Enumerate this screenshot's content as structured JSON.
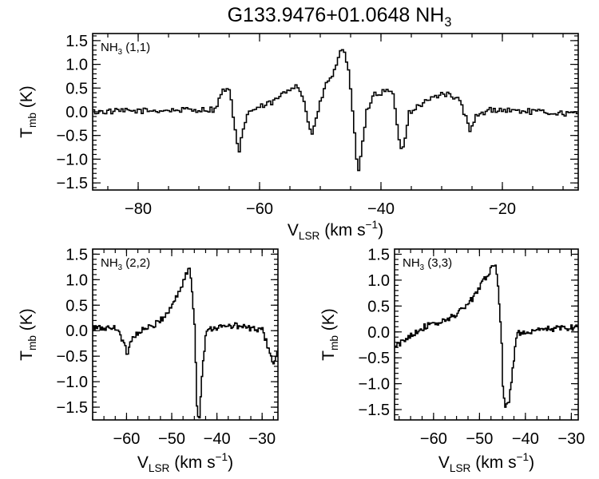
{
  "figure": {
    "title_main": "G133.9476+01.0648 NH",
    "title_sub": "3"
  },
  "chart_data": [
    {
      "type": "line",
      "step": true,
      "panel_label_main": "NH",
      "panel_label_sub": "3",
      "panel_label_suffix": " (1,1)",
      "xlabel_main": "V",
      "xlabel_sub": "LSR",
      "xlabel_unit": " (km s",
      "xlabel_sup": "−1",
      "xlabel_end": ")",
      "ylabel_main": "T",
      "ylabel_sub": "mb",
      "ylabel_unit": " (K)",
      "xlim": [
        -87.5,
        -7.5
      ],
      "ylim": [
        -1.65,
        1.65
      ],
      "xticks": [
        -80,
        -60,
        -40,
        -20
      ],
      "xtick_labels": [
        "−80",
        "−60",
        "−40",
        "−20"
      ],
      "yticks": [
        1.5,
        1.0,
        0.5,
        0.0,
        -0.5,
        -1.0,
        -1.5
      ],
      "ytick_labels": [
        "1.5",
        "1.0",
        "0.5",
        "0.0",
        "−0.5",
        "−1.0",
        "−1.5"
      ],
      "profile": [
        [
          -87.5,
          0.0
        ],
        [
          -67.5,
          0.05
        ],
        [
          -66.0,
          0.5
        ],
        [
          -65.0,
          0.4
        ],
        [
          -64.0,
          -0.6
        ],
        [
          -63.5,
          -0.9
        ],
        [
          -63.0,
          -0.4
        ],
        [
          -62.0,
          0.0
        ],
        [
          -58.0,
          0.2
        ],
        [
          -54.0,
          0.6
        ],
        [
          -53.0,
          0.3
        ],
        [
          -52.0,
          -0.3
        ],
        [
          -51.5,
          -0.45
        ],
        [
          -50.5,
          0.0
        ],
        [
          -49.5,
          0.5
        ],
        [
          -48.0,
          0.8
        ],
        [
          -47.0,
          1.2
        ],
        [
          -46.3,
          1.35
        ],
        [
          -45.5,
          0.9
        ],
        [
          -44.5,
          -0.5
        ],
        [
          -44.0,
          -1.3
        ],
        [
          -43.5,
          -1.0
        ],
        [
          -42.5,
          0.0
        ],
        [
          -41.5,
          0.35
        ],
        [
          -39.0,
          0.45
        ],
        [
          -38.0,
          0.3
        ],
        [
          -37.0,
          -0.8
        ],
        [
          -36.5,
          -0.75
        ],
        [
          -35.5,
          0.0
        ],
        [
          -33.0,
          0.2
        ],
        [
          -30.0,
          0.4
        ],
        [
          -28.0,
          0.3
        ],
        [
          -27.0,
          0.2
        ],
        [
          -26.0,
          -0.2
        ],
        [
          -25.5,
          -0.45
        ],
        [
          -24.5,
          -0.1
        ],
        [
          -22.0,
          0.05
        ],
        [
          -7.5,
          -0.05
        ]
      ],
      "x": [],
      "y": []
    },
    {
      "type": "line",
      "step": true,
      "panel_label_main": "NH",
      "panel_label_sub": "3",
      "panel_label_suffix": " (2,2)",
      "xlabel_main": "V",
      "xlabel_sub": "LSR",
      "xlabel_unit": " (km s",
      "xlabel_sup": "−1",
      "xlabel_end": ")",
      "ylabel_main": "T",
      "ylabel_sub": "mb",
      "ylabel_unit": " (K)",
      "xlim": [
        -67.5,
        -26.5
      ],
      "ylim": [
        -1.75,
        1.6
      ],
      "xticks": [
        -60,
        -50,
        -40,
        -30
      ],
      "xtick_labels": [
        "−60",
        "−50",
        "−40",
        "−30"
      ],
      "yticks": [
        1.5,
        1.0,
        0.5,
        0.0,
        -0.5,
        -1.0,
        -1.5
      ],
      "ytick_labels": [
        "1.5",
        "1.0",
        "0.5",
        "0.0",
        "−0.5",
        "−1.0",
        "−1.5"
      ],
      "profile": [
        [
          -67.5,
          0.05
        ],
        [
          -62.0,
          0.05
        ],
        [
          -61.0,
          -0.2
        ],
        [
          -60.0,
          -0.45
        ],
        [
          -59.0,
          -0.15
        ],
        [
          -57.0,
          0.0
        ],
        [
          -54.0,
          0.1
        ],
        [
          -51.0,
          0.35
        ],
        [
          -49.5,
          0.6
        ],
        [
          -48.0,
          0.85
        ],
        [
          -47.0,
          1.1
        ],
        [
          -46.2,
          1.2
        ],
        [
          -45.8,
          1.0
        ],
        [
          -45.0,
          0.0
        ],
        [
          -44.5,
          -1.6
        ],
        [
          -44.0,
          -1.7
        ],
        [
          -43.5,
          -0.9
        ],
        [
          -42.5,
          0.0
        ],
        [
          -41.5,
          0.05
        ],
        [
          -36.0,
          0.1
        ],
        [
          -30.0,
          0.0
        ],
        [
          -28.5,
          -0.4
        ],
        [
          -27.5,
          -0.7
        ],
        [
          -26.5,
          -0.3
        ]
      ],
      "x": [],
      "y": []
    },
    {
      "type": "line",
      "step": true,
      "panel_label_main": "NH",
      "panel_label_sub": "3",
      "panel_label_suffix": " (3,3)",
      "xlabel_main": "V",
      "xlabel_sub": "LSR",
      "xlabel_unit": " (km s",
      "xlabel_sup": "−1",
      "xlabel_end": ")",
      "ylabel_main": "T",
      "ylabel_sub": "mb",
      "ylabel_unit": " (K)",
      "xlim": [
        -68.5,
        -28.5
      ],
      "ylim": [
        -1.7,
        1.6
      ],
      "xticks": [
        -60,
        -50,
        -40,
        -30
      ],
      "xtick_labels": [
        "−60",
        "−50",
        "−40",
        "−30"
      ],
      "yticks": [
        1.5,
        1.0,
        0.5,
        0.0,
        -0.5,
        -1.0,
        -1.5
      ],
      "ytick_labels": [
        "1.5",
        "1.0",
        "0.5",
        "0.0",
        "−0.5",
        "−1.0",
        "−1.5"
      ],
      "profile": [
        [
          -68.5,
          -0.3
        ],
        [
          -67.0,
          -0.2
        ],
        [
          -65.0,
          -0.05
        ],
        [
          -62.0,
          0.1
        ],
        [
          -58.0,
          0.2
        ],
        [
          -55.0,
          0.35
        ],
        [
          -52.0,
          0.6
        ],
        [
          -50.0,
          0.9
        ],
        [
          -48.5,
          1.1
        ],
        [
          -47.2,
          1.25
        ],
        [
          -46.5,
          1.3
        ],
        [
          -46.0,
          0.8
        ],
        [
          -45.3,
          -0.2
        ],
        [
          -45.0,
          -1.1
        ],
        [
          -44.5,
          -1.45
        ],
        [
          -43.7,
          -1.4
        ],
        [
          -43.0,
          -0.8
        ],
        [
          -42.0,
          0.0
        ],
        [
          -40.0,
          -0.05
        ],
        [
          -36.0,
          0.05
        ],
        [
          -28.5,
          0.1
        ]
      ],
      "x": [],
      "y": []
    }
  ]
}
